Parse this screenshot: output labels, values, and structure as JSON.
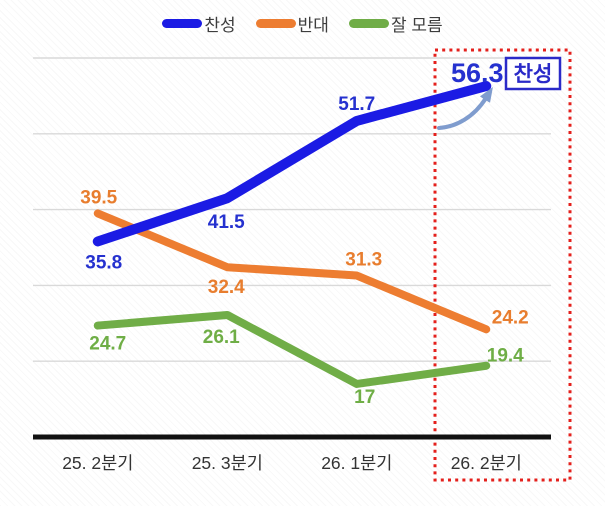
{
  "legend": {
    "items": [
      {
        "label": "찬성",
        "color": "#1b1be4"
      },
      {
        "label": "반대",
        "color": "#ED7D31"
      },
      {
        "label": "잘 모름",
        "color": "#70AD47"
      }
    ]
  },
  "chart_data": {
    "type": "line",
    "title": "",
    "categories": [
      "25. 2분기",
      "25. 3분기",
      "26. 1분기",
      "26. 2분기"
    ],
    "series": [
      {
        "name": "찬성",
        "color": "#1b1be4",
        "label_color": "#2531cf",
        "line_width": 10,
        "values": [
          35.8,
          41.5,
          51.7,
          56.3
        ],
        "label_offsets": [
          [
            6,
            27
          ],
          [
            -1,
            30
          ],
          [
            0,
            -11
          ],
          [
            -9,
            -4
          ]
        ]
      },
      {
        "name": "반대",
        "color": "#ED7D31",
        "label_color": "#e87d2e",
        "line_width": 8,
        "values": [
          39.5,
          32.4,
          31.3,
          24.2
        ],
        "label_offsets": [
          [
            1,
            -10
          ],
          [
            -1,
            26
          ],
          [
            7,
            -10
          ],
          [
            24,
            -6
          ]
        ]
      },
      {
        "name": "잘 모름",
        "color": "#70AD47",
        "label_color": "#6fae46",
        "line_width": 8,
        "values": [
          24.7,
          26.1,
          17,
          19.4
        ],
        "label_offsets": [
          [
            10,
            24
          ],
          [
            -6,
            28
          ],
          [
            8,
            19
          ],
          [
            19,
            -4
          ]
        ]
      }
    ],
    "ylim": [
      10,
      60
    ],
    "gridline_values": [
      20,
      30,
      40,
      50,
      60
    ],
    "grid": true,
    "legend_position": "top",
    "label_font_size": 19,
    "emphasis": {
      "series_index": 0,
      "point_index": 3,
      "font_size": 27
    },
    "highlight_box": {
      "category": "26. 2분기",
      "color": "#e4201c"
    },
    "callout": {
      "text": "찬성",
      "color": "#2a2ac8"
    },
    "arrow": {
      "color": "#7f9cce"
    },
    "axis_color": "#111111",
    "gridline_color": "#d9d9d9",
    "xlabel_color": "#333333"
  }
}
